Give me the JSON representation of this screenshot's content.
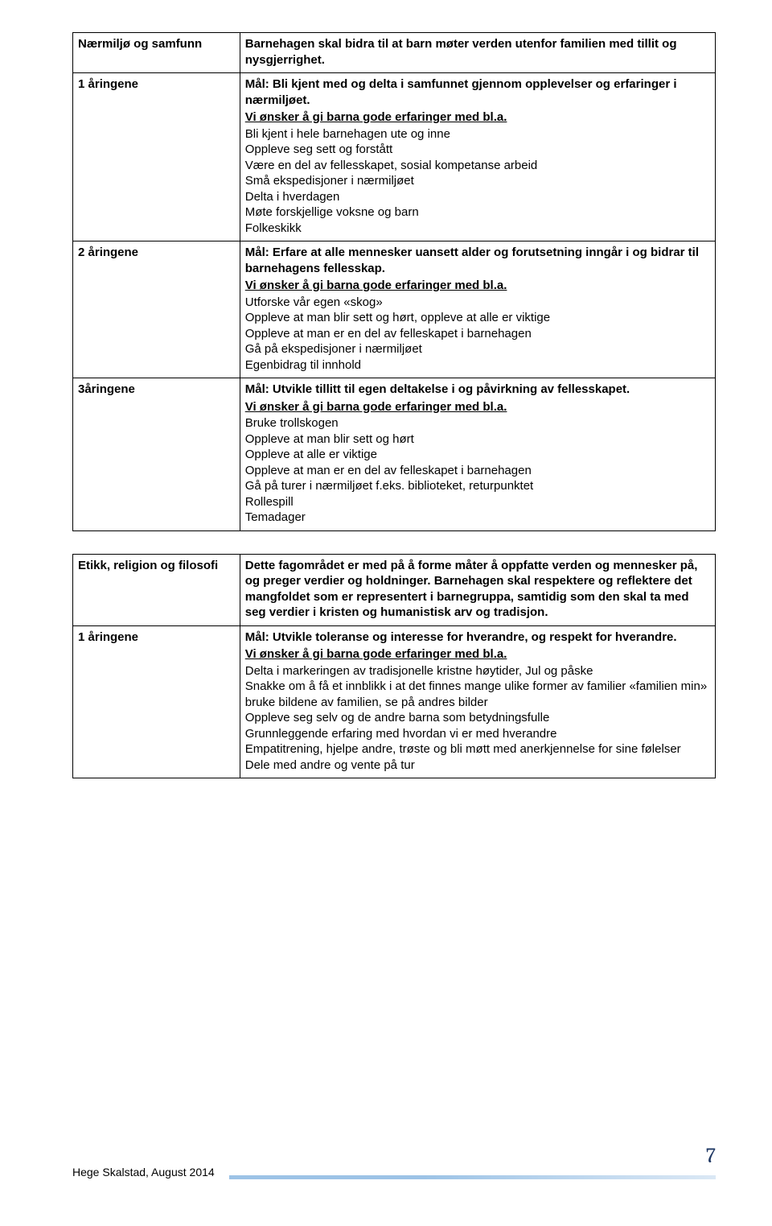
{
  "table1": {
    "rows": [
      {
        "label": "Nærmiljø og samfunn",
        "intro": "Barnehagen skal bidra til at barn møter verden utenfor familien med tillit og nysgjerrighet.",
        "goal": "",
        "wish": "",
        "items": []
      },
      {
        "label": "1 åringene",
        "intro": "",
        "goal": "Mål: Bli kjent med og delta i samfunnet gjennom opplevelser og erfaringer i nærmiljøet.",
        "wish": "Vi ønsker å gi barna gode erfaringer med bl.a.",
        "items": [
          "Bli kjent i hele barnehagen ute og inne",
          "Oppleve seg sett og forstått",
          "Være en del av fellesskapet, sosial kompetanse arbeid",
          "Små ekspedisjoner i nærmiljøet",
          "Delta i hverdagen",
          "Møte forskjellige voksne og barn",
          "Folkeskikk"
        ]
      },
      {
        "label": "2 åringene",
        "intro": "",
        "goal": "Mål: Erfare at alle mennesker uansett alder og forutsetning inngår i og bidrar til barnehagens fellesskap.",
        "wish": "Vi ønsker å gi barna gode erfaringer med bl.a.",
        "items": [
          "Utforske vår egen «skog»",
          "Oppleve at man blir sett og hørt, oppleve at alle er viktige",
          "Oppleve at man er en del av felleskapet i barnehagen",
          "Gå på ekspedisjoner i nærmiljøet",
          "Egenbidrag til innhold"
        ]
      },
      {
        "label": "3åringene",
        "intro": "",
        "goal": "Mål: Utvikle tillitt til egen deltakelse i og påvirkning av fellesskapet.",
        "wish": "Vi ønsker å gi barna gode erfaringer med bl.a.",
        "items": [
          "Bruke trollskogen",
          "Oppleve at man blir sett og hørt",
          "Oppleve at alle er viktige",
          "Oppleve at man er en del av felleskapet i barnehagen",
          "Gå på turer i nærmiljøet f.eks. biblioteket, returpunktet",
          "Rollespill",
          "Temadager"
        ]
      }
    ]
  },
  "table2": {
    "rows": [
      {
        "label": "Etikk, religion og filosofi",
        "intro": "Dette fagområdet er med på å forme måter å oppfatte verden og mennesker på, og preger verdier og holdninger. Barnehagen skal respektere og reflektere det mangfoldet som er representert i barnegruppa, samtidig som den skal ta med seg verdier i kristen og humanistisk arv og tradisjon.",
        "goal": "",
        "wish": "",
        "items": []
      },
      {
        "label": "1 åringene",
        "intro": "",
        "goal": "Mål: Utvikle toleranse og interesse for hverandre, og respekt for hverandre.",
        "wish": "Vi ønsker å gi barna gode erfaringer med bl.a.",
        "items": [
          "Delta i markeringen av tradisjonelle kristne høytider, Jul og påske",
          "Snakke om å få et innblikk i at det finnes mange ulike former av familier «familien min» bruke bildene av familien, se på andres bilder",
          "Oppleve seg selv og de andre barna som betydningsfulle",
          "Grunnleggende erfaring med hvordan vi er med hverandre",
          "Empatitrening, hjelpe andre, trøste og bli møtt med anerkjennelse for sine følelser",
          "Dele med andre og vente på tur"
        ]
      }
    ]
  },
  "footer": {
    "author": "Hege Skalstad, August 2014",
    "page": "7"
  }
}
